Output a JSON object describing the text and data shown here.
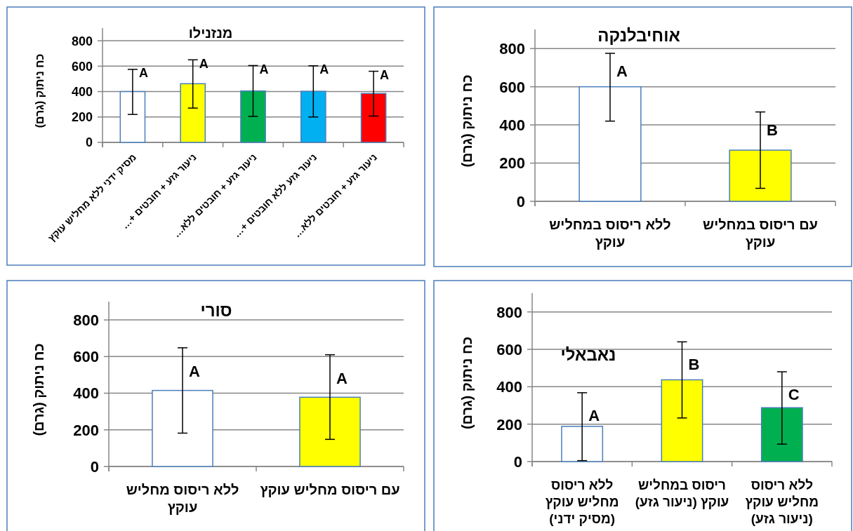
{
  "chart_data": [
    {
      "type": "bar",
      "title": "מנזנילו",
      "ylabel": "כח ניתוק (גרם)",
      "categories": [
        "מסיק ידני ללא מחליש עוקץ",
        "ניעור גזע + חובטים +…",
        "ניעור גזע + חובטים ללא…",
        "ניעור גזע ללא חובטים +…",
        "ניעור גזע + חובטים ללא…"
      ],
      "values": [
        400,
        462,
        405,
        402,
        385
      ],
      "colors": [
        "#ffffff",
        "#ffff00",
        "#00b050",
        "#00b0f0",
        "#ff0000"
      ],
      "errors": [
        [
          220,
          575
        ],
        [
          270,
          650
        ],
        [
          205,
          605
        ],
        [
          200,
          603
        ],
        [
          207,
          560
        ]
      ],
      "ylim": [
        0,
        900
      ],
      "yticks": [
        0,
        200,
        400,
        600,
        800
      ],
      "grid": "y",
      "annotations": [
        "A",
        "A",
        "A",
        "A",
        "A"
      ]
    },
    {
      "type": "bar",
      "title": "אוחיבלנקה",
      "ylabel": "כח ניתוק (גרם)",
      "categories": [
        "ללא ריסוס במחליש עוקץ",
        "עם ריסוס במחליש עוקץ"
      ],
      "values": [
        600,
        268
      ],
      "colors": [
        "#ffffff",
        "#ffff00"
      ],
      "errors": [
        [
          420,
          775
        ],
        [
          68,
          468
        ]
      ],
      "ylim": [
        0,
        900
      ],
      "yticks": [
        0,
        200,
        400,
        600,
        800
      ],
      "grid": "y",
      "annotations": [
        "A",
        "B"
      ]
    },
    {
      "type": "bar",
      "title": "סורי",
      "ylabel": "כח ניתוק (גרם)",
      "categories": [
        "ללא ריסוס מחליש עוקץ",
        "עם ריסוס מחליש עוקץ"
      ],
      "values": [
        415,
        378
      ],
      "colors": [
        "#ffffff",
        "#ffff00"
      ],
      "errors": [
        [
          182,
          648
        ],
        [
          148,
          610
        ]
      ],
      "ylim": [
        0,
        900
      ],
      "yticks": [
        0,
        200,
        400,
        600,
        800
      ],
      "grid": "y",
      "annotations": [
        "A",
        "A"
      ]
    },
    {
      "type": "bar",
      "title": "נאבאלי",
      "ylabel": "כח ניתוק (גרם)",
      "categories": [
        "ללא ריסוס מחליש עוקץ (מסיק ידני)",
        "ריסוס במחליש עוקץ (ניעור גזע)",
        "ללא ריסוס מחליש עוקץ (ניעור גזע)"
      ],
      "values": [
        188,
        437,
        288
      ],
      "colors": [
        "#ffffff",
        "#ffff00",
        "#00b050"
      ],
      "errors": [
        [
          5,
          368
        ],
        [
          233,
          640
        ],
        [
          93,
          480
        ]
      ],
      "ylim": [
        0,
        900
      ],
      "yticks": [
        0,
        200,
        400,
        600,
        800
      ],
      "grid": "y",
      "annotations": [
        "A",
        "B",
        "C"
      ]
    }
  ]
}
